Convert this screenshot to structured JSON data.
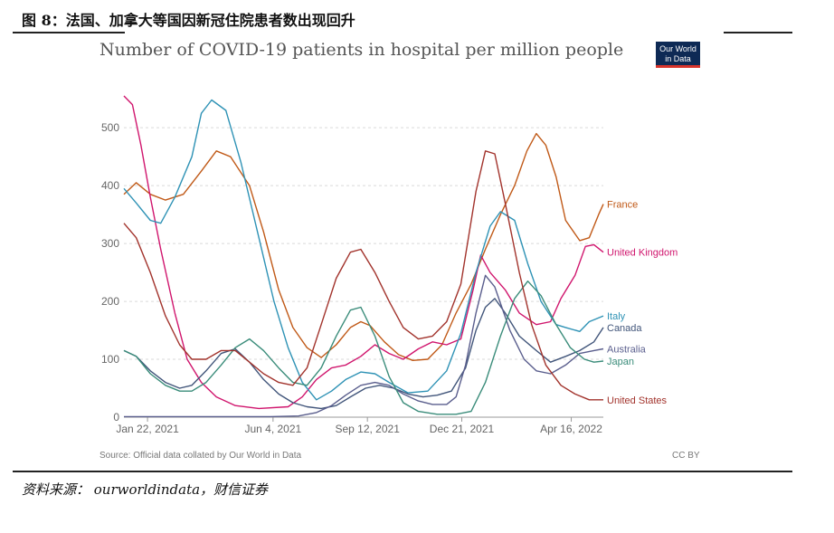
{
  "figure": {
    "title": "图 8：法国、加拿大等国因新冠住院患者数出现回升",
    "source": "资料来源： ourworldindata，财信证券"
  },
  "logo": {
    "line1": "Our World",
    "line2": "in Data"
  },
  "footer": {
    "source_note": "Source: Official data collated by Our World in Data",
    "license": "CC BY"
  },
  "chart_data": {
    "type": "line",
    "title": "Number of COVID-19 patients in hospital per million people",
    "ylim": [
      0,
      580
    ],
    "yticks": [
      0,
      100,
      200,
      300,
      400,
      500
    ],
    "xlim": [
      "2020-12-28",
      "2022-05-20"
    ],
    "xticks": [
      {
        "date": "2021-01-22",
        "label": "Jan 22, 2021"
      },
      {
        "date": "2021-06-04",
        "label": "Jun 4, 2021"
      },
      {
        "date": "2021-09-12",
        "label": "Sep 12, 2021"
      },
      {
        "date": "2021-12-21",
        "label": "Dec 21, 2021"
      },
      {
        "date": "2022-04-16",
        "label": "Apr 16, 2022"
      }
    ],
    "grid": true,
    "legend": "right (labels at line ends)",
    "series": [
      {
        "name": "France",
        "color": "#c05917",
        "points": [
          [
            "2020-12-28",
            385
          ],
          [
            "2021-01-10",
            405
          ],
          [
            "2021-01-25",
            385
          ],
          [
            "2021-02-10",
            375
          ],
          [
            "2021-03-01",
            385
          ],
          [
            "2021-03-20",
            425
          ],
          [
            "2021-04-05",
            460
          ],
          [
            "2021-04-20",
            450
          ],
          [
            "2021-05-10",
            400
          ],
          [
            "2021-05-25",
            320
          ],
          [
            "2021-06-10",
            220
          ],
          [
            "2021-06-25",
            155
          ],
          [
            "2021-07-10",
            120
          ],
          [
            "2021-07-25",
            103
          ],
          [
            "2021-08-10",
            125
          ],
          [
            "2021-08-25",
            155
          ],
          [
            "2021-09-05",
            165
          ],
          [
            "2021-09-15",
            158
          ],
          [
            "2021-09-30",
            130
          ],
          [
            "2021-10-15",
            108
          ],
          [
            "2021-10-30",
            98
          ],
          [
            "2021-11-15",
            100
          ],
          [
            "2021-11-30",
            125
          ],
          [
            "2021-12-15",
            180
          ],
          [
            "2021-12-31",
            230
          ],
          [
            "2022-01-15",
            290
          ],
          [
            "2022-01-31",
            350
          ],
          [
            "2022-02-15",
            400
          ],
          [
            "2022-02-28",
            460
          ],
          [
            "2022-03-10",
            490
          ],
          [
            "2022-03-20",
            470
          ],
          [
            "2022-03-31",
            415
          ],
          [
            "2022-04-10",
            340
          ],
          [
            "2022-04-25",
            305
          ],
          [
            "2022-05-05",
            310
          ],
          [
            "2022-05-15",
            350
          ],
          [
            "2022-05-20",
            368
          ]
        ]
      },
      {
        "name": "United Kingdom",
        "color": "#d0156d",
        "points": [
          [
            "2020-12-28",
            555
          ],
          [
            "2021-01-06",
            540
          ],
          [
            "2021-01-15",
            470
          ],
          [
            "2021-01-25",
            380
          ],
          [
            "2021-02-05",
            290
          ],
          [
            "2021-02-20",
            180
          ],
          [
            "2021-03-05",
            100
          ],
          [
            "2021-03-20",
            60
          ],
          [
            "2021-04-05",
            35
          ],
          [
            "2021-04-25",
            20
          ],
          [
            "2021-05-20",
            15
          ],
          [
            "2021-06-20",
            18
          ],
          [
            "2021-07-05",
            35
          ],
          [
            "2021-07-20",
            65
          ],
          [
            "2021-08-05",
            85
          ],
          [
            "2021-08-20",
            90
          ],
          [
            "2021-09-05",
            105
          ],
          [
            "2021-09-20",
            125
          ],
          [
            "2021-10-05",
            110
          ],
          [
            "2021-10-20",
            100
          ],
          [
            "2021-11-05",
            118
          ],
          [
            "2021-11-20",
            130
          ],
          [
            "2021-12-05",
            125
          ],
          [
            "2021-12-20",
            135
          ],
          [
            "2022-01-02",
            220
          ],
          [
            "2022-01-10",
            280
          ],
          [
            "2022-01-20",
            250
          ],
          [
            "2022-02-05",
            220
          ],
          [
            "2022-02-20",
            180
          ],
          [
            "2022-03-10",
            160
          ],
          [
            "2022-03-25",
            165
          ],
          [
            "2022-04-05",
            205
          ],
          [
            "2022-04-20",
            245
          ],
          [
            "2022-05-01",
            295
          ],
          [
            "2022-05-10",
            298
          ],
          [
            "2022-05-20",
            285
          ]
        ]
      },
      {
        "name": "Italy",
        "color": "#2e92b5",
        "points": [
          [
            "2020-12-28",
            395
          ],
          [
            "2021-01-10",
            370
          ],
          [
            "2021-01-25",
            340
          ],
          [
            "2021-02-05",
            335
          ],
          [
            "2021-02-20",
            380
          ],
          [
            "2021-03-10",
            450
          ],
          [
            "2021-03-20",
            525
          ],
          [
            "2021-03-31",
            548
          ],
          [
            "2021-04-15",
            530
          ],
          [
            "2021-05-01",
            440
          ],
          [
            "2021-05-20",
            310
          ],
          [
            "2021-06-05",
            200
          ],
          [
            "2021-06-20",
            120
          ],
          [
            "2021-07-05",
            60
          ],
          [
            "2021-07-20",
            30
          ],
          [
            "2021-08-05",
            45
          ],
          [
            "2021-08-20",
            65
          ],
          [
            "2021-09-05",
            78
          ],
          [
            "2021-09-20",
            75
          ],
          [
            "2021-10-05",
            60
          ],
          [
            "2021-10-25",
            42
          ],
          [
            "2021-11-15",
            45
          ],
          [
            "2021-12-05",
            80
          ],
          [
            "2021-12-20",
            145
          ],
          [
            "2022-01-05",
            250
          ],
          [
            "2022-01-20",
            330
          ],
          [
            "2022-01-31",
            355
          ],
          [
            "2022-02-15",
            340
          ],
          [
            "2022-03-01",
            265
          ],
          [
            "2022-03-15",
            200
          ],
          [
            "2022-03-31",
            160
          ],
          [
            "2022-04-10",
            155
          ],
          [
            "2022-04-25",
            148
          ],
          [
            "2022-05-05",
            165
          ],
          [
            "2022-05-20",
            175
          ]
        ]
      },
      {
        "name": "Canada",
        "color": "#41557a",
        "points": [
          [
            "2020-12-28",
            115
          ],
          [
            "2021-01-10",
            105
          ],
          [
            "2021-01-25",
            80
          ],
          [
            "2021-02-10",
            60
          ],
          [
            "2021-02-25",
            50
          ],
          [
            "2021-03-10",
            55
          ],
          [
            "2021-03-25",
            80
          ],
          [
            "2021-04-10",
            110
          ],
          [
            "2021-04-25",
            118
          ],
          [
            "2021-05-10",
            95
          ],
          [
            "2021-05-25",
            65
          ],
          [
            "2021-06-10",
            40
          ],
          [
            "2021-06-25",
            25
          ],
          [
            "2021-07-10",
            18
          ],
          [
            "2021-07-25",
            15
          ],
          [
            "2021-08-10",
            20
          ],
          [
            "2021-08-25",
            35
          ],
          [
            "2021-09-10",
            50
          ],
          [
            "2021-09-25",
            55
          ],
          [
            "2021-10-10",
            50
          ],
          [
            "2021-10-25",
            40
          ],
          [
            "2021-11-10",
            35
          ],
          [
            "2021-11-25",
            38
          ],
          [
            "2021-12-10",
            45
          ],
          [
            "2021-12-25",
            85
          ],
          [
            "2022-01-05",
            150
          ],
          [
            "2022-01-15",
            190
          ],
          [
            "2022-01-25",
            205
          ],
          [
            "2022-02-05",
            180
          ],
          [
            "2022-02-20",
            140
          ],
          [
            "2022-03-10",
            115
          ],
          [
            "2022-03-25",
            95
          ],
          [
            "2022-04-10",
            105
          ],
          [
            "2022-04-25",
            115
          ],
          [
            "2022-05-10",
            130
          ],
          [
            "2022-05-20",
            155
          ]
        ]
      },
      {
        "name": "Australia",
        "color": "#5a5e8d",
        "points": [
          [
            "2020-12-28",
            1
          ],
          [
            "2021-03-01",
            1
          ],
          [
            "2021-06-01",
            1
          ],
          [
            "2021-07-01",
            2
          ],
          [
            "2021-07-20",
            8
          ],
          [
            "2021-08-05",
            20
          ],
          [
            "2021-08-20",
            38
          ],
          [
            "2021-09-05",
            55
          ],
          [
            "2021-09-20",
            60
          ],
          [
            "2021-10-05",
            55
          ],
          [
            "2021-10-20",
            40
          ],
          [
            "2021-11-05",
            28
          ],
          [
            "2021-11-20",
            22
          ],
          [
            "2021-12-05",
            22
          ],
          [
            "2021-12-15",
            35
          ],
          [
            "2021-12-25",
            90
          ],
          [
            "2022-01-05",
            180
          ],
          [
            "2022-01-15",
            245
          ],
          [
            "2022-01-25",
            225
          ],
          [
            "2022-02-10",
            150
          ],
          [
            "2022-02-25",
            100
          ],
          [
            "2022-03-10",
            80
          ],
          [
            "2022-03-25",
            75
          ],
          [
            "2022-04-10",
            90
          ],
          [
            "2022-04-25",
            110
          ],
          [
            "2022-05-10",
            115
          ],
          [
            "2022-05-20",
            118
          ]
        ]
      },
      {
        "name": "Japan",
        "color": "#3a8c7a",
        "points": [
          [
            "2020-12-28",
            115
          ],
          [
            "2021-01-10",
            105
          ],
          [
            "2021-01-25",
            75
          ],
          [
            "2021-02-10",
            55
          ],
          [
            "2021-02-25",
            45
          ],
          [
            "2021-03-10",
            45
          ],
          [
            "2021-03-25",
            60
          ],
          [
            "2021-04-10",
            90
          ],
          [
            "2021-04-25",
            120
          ],
          [
            "2021-05-10",
            135
          ],
          [
            "2021-05-25",
            115
          ],
          [
            "2021-06-10",
            85
          ],
          [
            "2021-06-25",
            60
          ],
          [
            "2021-07-10",
            55
          ],
          [
            "2021-07-25",
            85
          ],
          [
            "2021-08-10",
            140
          ],
          [
            "2021-08-25",
            185
          ],
          [
            "2021-09-05",
            190
          ],
          [
            "2021-09-20",
            140
          ],
          [
            "2021-10-05",
            70
          ],
          [
            "2021-10-20",
            25
          ],
          [
            "2021-11-05",
            10
          ],
          [
            "2021-11-25",
            5
          ],
          [
            "2021-12-15",
            5
          ],
          [
            "2021-12-31",
            10
          ],
          [
            "2022-01-15",
            60
          ],
          [
            "2022-01-31",
            140
          ],
          [
            "2022-02-15",
            205
          ],
          [
            "2022-03-01",
            235
          ],
          [
            "2022-03-15",
            210
          ],
          [
            "2022-03-31",
            160
          ],
          [
            "2022-04-15",
            120
          ],
          [
            "2022-04-30",
            100
          ],
          [
            "2022-05-10",
            95
          ],
          [
            "2022-05-20",
            97
          ]
        ]
      },
      {
        "name": "United States",
        "color": "#a2332c",
        "points": [
          [
            "2020-12-28",
            335
          ],
          [
            "2021-01-10",
            310
          ],
          [
            "2021-01-25",
            250
          ],
          [
            "2021-02-10",
            175
          ],
          [
            "2021-02-25",
            125
          ],
          [
            "2021-03-10",
            100
          ],
          [
            "2021-03-25",
            100
          ],
          [
            "2021-04-10",
            115
          ],
          [
            "2021-04-25",
            115
          ],
          [
            "2021-05-10",
            95
          ],
          [
            "2021-05-25",
            75
          ],
          [
            "2021-06-10",
            60
          ],
          [
            "2021-06-25",
            55
          ],
          [
            "2021-07-10",
            85
          ],
          [
            "2021-07-25",
            160
          ],
          [
            "2021-08-10",
            240
          ],
          [
            "2021-08-25",
            285
          ],
          [
            "2021-09-05",
            290
          ],
          [
            "2021-09-20",
            250
          ],
          [
            "2021-10-05",
            200
          ],
          [
            "2021-10-20",
            155
          ],
          [
            "2021-11-05",
            135
          ],
          [
            "2021-11-20",
            140
          ],
          [
            "2021-12-05",
            165
          ],
          [
            "2021-12-20",
            230
          ],
          [
            "2022-01-05",
            390
          ],
          [
            "2022-01-15",
            460
          ],
          [
            "2022-01-25",
            455
          ],
          [
            "2022-02-05",
            370
          ],
          [
            "2022-02-20",
            250
          ],
          [
            "2022-03-05",
            160
          ],
          [
            "2022-03-20",
            90
          ],
          [
            "2022-04-05",
            55
          ],
          [
            "2022-04-20",
            40
          ],
          [
            "2022-05-05",
            30
          ],
          [
            "2022-05-20",
            30
          ]
        ]
      }
    ]
  }
}
